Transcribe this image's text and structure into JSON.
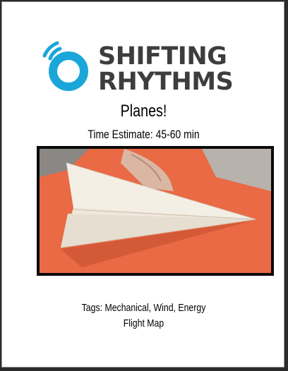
{
  "logo": {
    "line1": "SHIFTING",
    "line2": "RHYTHMS",
    "brand_color": "#1aa6d9",
    "text_color": "#3d3d3d",
    "icon": "circle-signal-logo-icon"
  },
  "title": "Planes!",
  "time_estimate": "Time Estimate: 45-60 min",
  "image": {
    "subject": "paper-airplane-on-orange-surface",
    "background_color": "#e96a45"
  },
  "tags_line": "Tags: Mechanical, Wind, Energy",
  "flight_map_line": "Flight Map"
}
